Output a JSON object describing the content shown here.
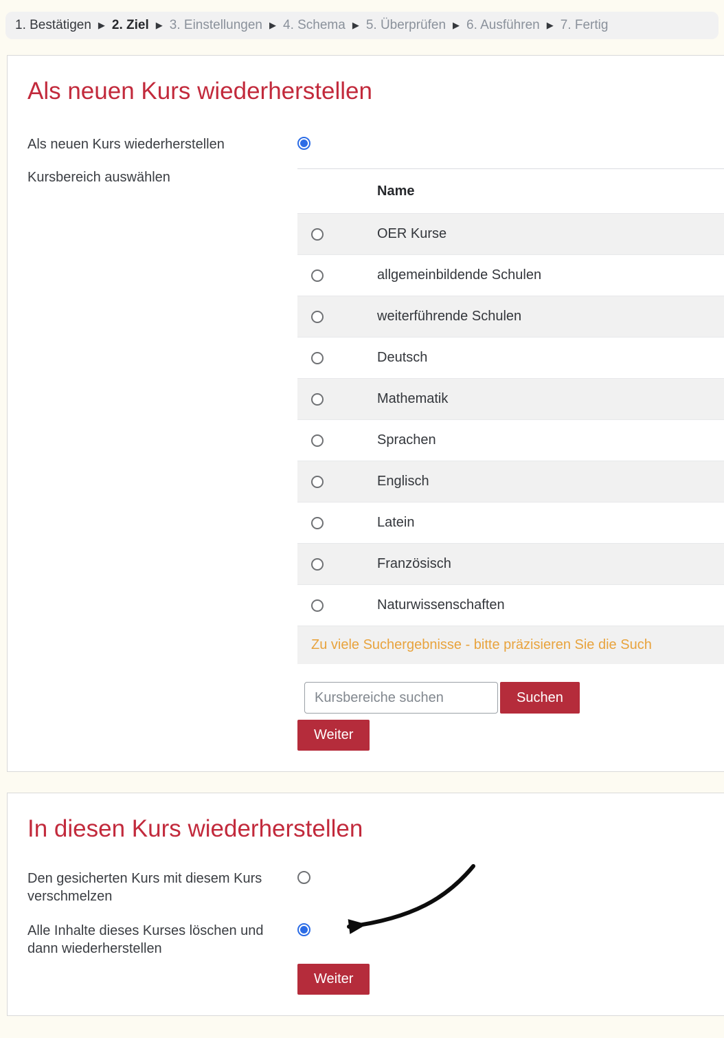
{
  "steps": {
    "separator": "▶",
    "items": [
      {
        "label": "1. Bestätigen",
        "state": "done"
      },
      {
        "label": "2. Ziel",
        "state": "current"
      },
      {
        "label": "3. Einstellungen",
        "state": "future"
      },
      {
        "label": "4. Schema",
        "state": "future"
      },
      {
        "label": "5. Überprüfen",
        "state": "future"
      },
      {
        "label": "6. Ausführen",
        "state": "future"
      },
      {
        "label": "7. Fertig",
        "state": "future"
      }
    ]
  },
  "section_new_course": {
    "title": "Als neuen Kurs wiederherstellen",
    "restore_option_label": "Als neuen Kurs wiederherstellen",
    "restore_option_selected": true,
    "category_label": "Kursbereich auswählen",
    "table": {
      "name_header": "Name",
      "categories": [
        "OER Kurse",
        "allgemeinbildende Schulen",
        "weiterführende Schulen",
        "Deutsch",
        "Mathematik",
        "Sprachen",
        "Englisch",
        "Latein",
        "Französisch",
        "Naturwissenschaften"
      ]
    },
    "notice": "Zu viele Suchergebnisse - bitte präzisieren Sie die Such",
    "search": {
      "placeholder": "Kursbereiche suchen",
      "button_label": "Suchen"
    },
    "continue_label": "Weiter"
  },
  "section_into_course": {
    "title": "In diesen Kurs wiederherstellen",
    "options": [
      {
        "label": "Den gesicherten Kurs mit diesem Kurs verschmelzen",
        "selected": false
      },
      {
        "label": "Alle Inhalte dieses Kurses löschen und dann wiederherstellen",
        "selected": true
      }
    ],
    "continue_label": "Weiter"
  },
  "colors": {
    "heading_red": "#c22a3c",
    "button_red": "#b52c3b",
    "radio_blue": "#2b6ce6",
    "notice_orange": "#e8a33d",
    "stripe_gray": "#f1f1f1",
    "page_background": "#fdfbf2"
  }
}
